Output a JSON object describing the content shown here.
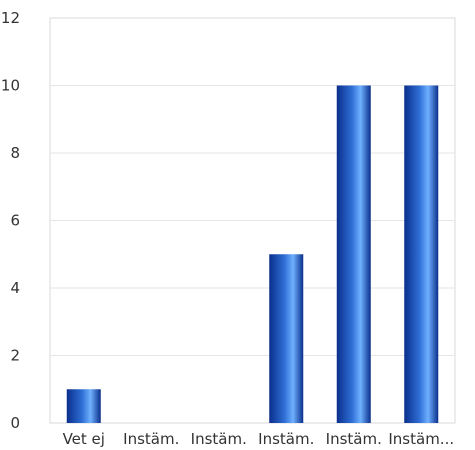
{
  "chart_data": {
    "type": "bar",
    "categories": [
      "Vet ej",
      "Instäm.",
      "Instäm.",
      "Instäm.",
      "Instäm.",
      "Instäm..."
    ],
    "values": [
      1,
      0,
      0,
      5,
      10,
      10
    ],
    "title": "",
    "xlabel": "",
    "ylabel": "",
    "ylim": [
      0,
      12
    ],
    "yticks": [
      0,
      2,
      4,
      6,
      8,
      10,
      12
    ],
    "grid": true,
    "legend": "none",
    "colors": {
      "bar_dark": "#0a2f8c",
      "bar_mid": "#2f6fd6",
      "bar_light": "#6fb0ff",
      "grid": "#e6e6e6",
      "axis": "#cfcfcf"
    }
  }
}
